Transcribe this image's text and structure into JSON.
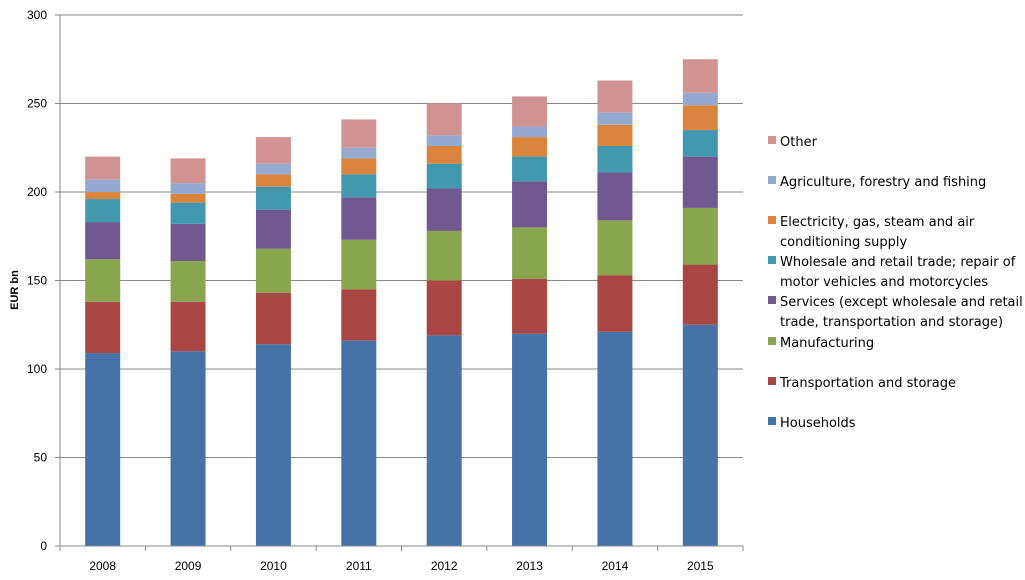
{
  "chart_data": {
    "type": "bar",
    "stacked": true,
    "title": "",
    "xlabel": "",
    "ylabel": "EUR bn",
    "ylim": [
      0,
      300
    ],
    "yticks": [
      0,
      50,
      100,
      150,
      200,
      250,
      300
    ],
    "grid": true,
    "legend_position": "right",
    "categories": [
      "2008",
      "2009",
      "2010",
      "2011",
      "2012",
      "2013",
      "2014",
      "2015"
    ],
    "series": [
      {
        "name": "Households",
        "color": "#4572A7",
        "values": [
          109,
          110,
          114,
          116,
          119,
          120,
          121,
          125
        ]
      },
      {
        "name": "Transportation and storage",
        "color": "#AA4643",
        "values": [
          29,
          28,
          29,
          29,
          31,
          31,
          32,
          34
        ]
      },
      {
        "name": "Manufacturing",
        "color": "#89A54E",
        "values": [
          24,
          23,
          25,
          28,
          28,
          29,
          31,
          32
        ]
      },
      {
        "name": "Services (except wholesale and retail trade, transportation and storage)",
        "color": "#71588F",
        "values": [
          21,
          21,
          22,
          24,
          24,
          26,
          27,
          29
        ]
      },
      {
        "name": "Wholesale and retail trade; repair of motor vehicles and motorcycles",
        "color": "#4198AF",
        "values": [
          13,
          12,
          13,
          13,
          14,
          14,
          15,
          15
        ]
      },
      {
        "name": "Electricity, gas, steam and air conditioning supply",
        "color": "#DB843D",
        "values": [
          4,
          5,
          7,
          9,
          10,
          11,
          12,
          14
        ]
      },
      {
        "name": "Agriculture, forestry and fishing",
        "color": "#93A9CF",
        "values": [
          7,
          6,
          6,
          6,
          6,
          6,
          7,
          7
        ]
      },
      {
        "name": "Other",
        "color": "#D19392",
        "values": [
          13,
          14,
          15,
          16,
          18,
          17,
          18,
          19
        ]
      }
    ],
    "legend": [
      {
        "lines": [
          "Other"
        ],
        "color": "#D19392"
      },
      {
        "lines": [
          "Agriculture, forestry and fishing"
        ],
        "color": "#93A9CF"
      },
      {
        "lines": [
          "Electricity, gas, steam and air",
          "conditioning supply"
        ],
        "color": "#DB843D"
      },
      {
        "lines": [
          "Wholesale and retail trade; repair of",
          "motor vehicles and motorcycles"
        ],
        "color": "#4198AF"
      },
      {
        "lines": [
          "Services (except wholesale and retail",
          "trade, transportation and storage)"
        ],
        "color": "#71588F"
      },
      {
        "lines": [
          "Manufacturing"
        ],
        "color": "#89A54E"
      },
      {
        "lines": [
          "Transportation and storage"
        ],
        "color": "#AA4643"
      },
      {
        "lines": [
          "Households"
        ],
        "color": "#4572A7"
      }
    ]
  }
}
